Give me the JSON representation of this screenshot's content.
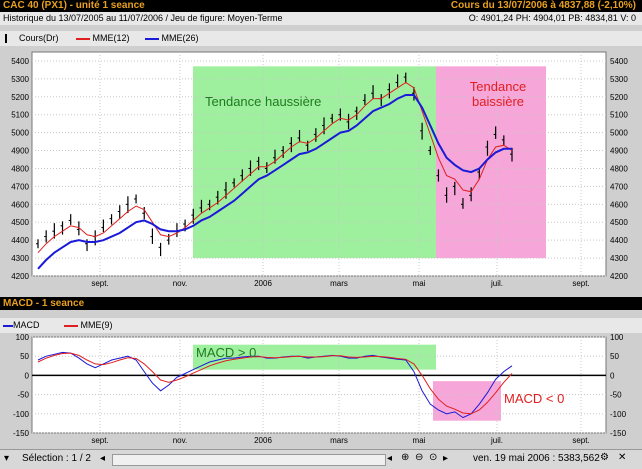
{
  "header": {
    "title": "CAC 40 (PX1) - unité 1 seance",
    "quote": "Cours du 13/07/2006 à 4837,88 (-2,10%)",
    "history": "Historique du 13/07/2005 au 11/07/2006 / Jeu de figure: Moyen-Terme",
    "ohlc": "O: 4901,24  PH: 4904,01  PB: 4834,81  V: 0"
  },
  "price_legend": {
    "cours": "Cours(Dr)",
    "mme12": "MME(12)",
    "mme26": "MME(26)"
  },
  "macd_header": {
    "title": "MACD - 1 seance"
  },
  "macd_legend": {
    "macd": "MACD",
    "mme9": "MME(9)"
  },
  "annotations": {
    "up": "Tendance haussière",
    "down_1": "Tendance",
    "down_2": "baissière",
    "macd_pos": "MACD > 0",
    "macd_neg": "MACD < 0"
  },
  "status": {
    "selection": "Sélection : 1 / 2",
    "date": "ven. 19 mai 2006 : 5383,562"
  },
  "colors": {
    "up_zone": "#9ef09e",
    "down_zone": "#f6a6d8",
    "mme12": "#e02020",
    "mme26": "#1a1ad8",
    "candles": "#000000",
    "header_text": "#e8a020"
  },
  "chart_data": [
    {
      "type": "line",
      "title": "CAC 40 (PX1) - unité 1 seance",
      "x_tick_labels": [
        "sept.",
        "nov.",
        "2006",
        "mars",
        "mai",
        "juil.",
        "sept."
      ],
      "ylim": [
        4200,
        5450
      ],
      "y_ticks": [
        4200,
        4300,
        4400,
        4500,
        4600,
        4700,
        4800,
        4900,
        5000,
        5100,
        5200,
        5300,
        5400
      ],
      "grid": true,
      "series": [
        {
          "name": "Cours(Dr)",
          "style": "bars",
          "values": [
            4380,
            4420,
            4450,
            4480,
            4510,
            4460,
            4380,
            4420,
            4470,
            4520,
            4560,
            4600,
            4630,
            4550,
            4420,
            4360,
            4400,
            4450,
            4490,
            4540,
            4580,
            4600,
            4640,
            4680,
            4720,
            4760,
            4800,
            4840,
            4800,
            4860,
            4900,
            4940,
            4970,
            4930,
            4990,
            5040,
            5080,
            5100,
            5060,
            5120,
            5180,
            5220,
            5190,
            5240,
            5280,
            5310,
            5220,
            5010,
            4900,
            4760,
            4650,
            4700,
            4600,
            4650,
            4780,
            4920,
            4990,
            4960,
            4880
          ]
        },
        {
          "name": "MME(12)",
          "values": [
            4330,
            4380,
            4420,
            4450,
            4480,
            4470,
            4430,
            4420,
            4440,
            4480,
            4520,
            4560,
            4590,
            4570,
            4500,
            4430,
            4420,
            4440,
            4470,
            4510,
            4550,
            4580,
            4610,
            4650,
            4690,
            4730,
            4770,
            4810,
            4810,
            4840,
            4880,
            4920,
            4950,
            4940,
            4970,
            5010,
            5050,
            5080,
            5070,
            5100,
            5150,
            5190,
            5190,
            5220,
            5250,
            5280,
            5250,
            5120,
            4990,
            4860,
            4760,
            4740,
            4680,
            4670,
            4740,
            4850,
            4920,
            4930,
            4900
          ]
        },
        {
          "name": "MME(26)",
          "values": [
            4240,
            4290,
            4330,
            4360,
            4390,
            4400,
            4390,
            4390,
            4400,
            4420,
            4440,
            4470,
            4500,
            4510,
            4490,
            4460,
            4450,
            4450,
            4460,
            4480,
            4510,
            4530,
            4560,
            4590,
            4620,
            4660,
            4700,
            4740,
            4760,
            4790,
            4820,
            4850,
            4880,
            4890,
            4910,
            4940,
            4970,
            5000,
            5010,
            5040,
            5080,
            5120,
            5140,
            5160,
            5190,
            5210,
            5210,
            5140,
            5040,
            4940,
            4860,
            4820,
            4790,
            4780,
            4800,
            4850,
            4890,
            4910,
            4910
          ]
        }
      ]
    },
    {
      "type": "line",
      "title": "MACD - 1 seance",
      "x_tick_labels": [
        "sept.",
        "nov.",
        "2006",
        "mars",
        "mai",
        "juil.",
        "sept."
      ],
      "ylim": [
        -150,
        100
      ],
      "y_ticks": [
        -150,
        -100,
        -50,
        0,
        50,
        100
      ],
      "grid": true,
      "series": [
        {
          "name": "MACD",
          "values": [
            40,
            50,
            55,
            60,
            58,
            45,
            30,
            20,
            30,
            40,
            45,
            50,
            40,
            10,
            -20,
            -40,
            -25,
            -5,
            5,
            15,
            25,
            35,
            40,
            45,
            45,
            48,
            50,
            50,
            45,
            45,
            48,
            50,
            50,
            45,
            48,
            50,
            52,
            50,
            45,
            45,
            50,
            52,
            48,
            45,
            42,
            40,
            10,
            -40,
            -75,
            -90,
            -100,
            -95,
            -110,
            -100,
            -75,
            -45,
            -10,
            10,
            25
          ]
        },
        {
          "name": "MME(9)",
          "values": [
            35,
            45,
            52,
            57,
            58,
            52,
            40,
            30,
            28,
            33,
            40,
            46,
            44,
            30,
            10,
            -12,
            -18,
            -12,
            -4,
            6,
            15,
            25,
            32,
            38,
            42,
            45,
            48,
            49,
            47,
            46,
            47,
            49,
            50,
            48,
            48,
            49,
            51,
            51,
            48,
            47,
            48,
            50,
            49,
            47,
            44,
            42,
            30,
            0,
            -35,
            -62,
            -80,
            -88,
            -98,
            -100,
            -90,
            -70,
            -45,
            -18,
            5
          ]
        }
      ]
    }
  ]
}
